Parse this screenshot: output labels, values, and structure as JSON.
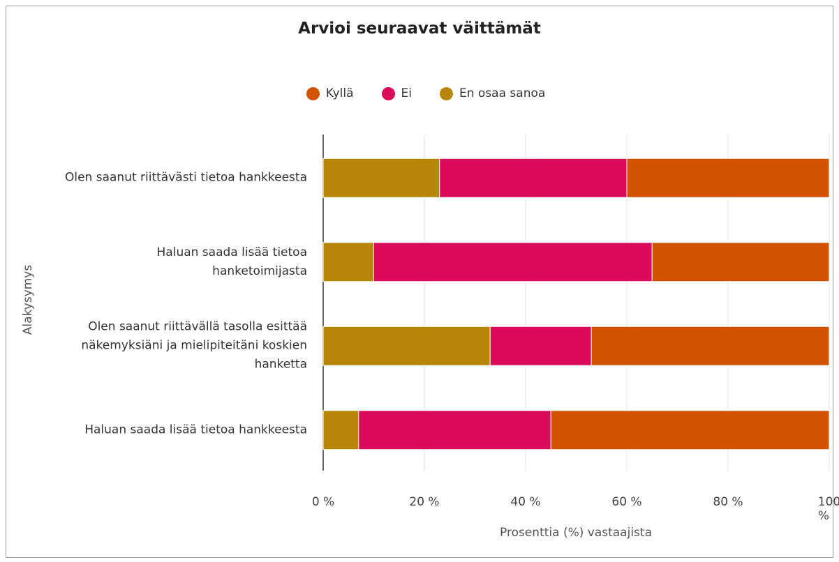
{
  "chart_data": {
    "type": "stacked_bar_horizontal",
    "title": "Arvioi seuraavat väittämät",
    "x_label": "Prosenttia (%) vastaajista",
    "y_label": "Alakysymys",
    "categories": [
      "Olen saanut riittävästi tietoa hankkeesta",
      "Haluan saada lisää tietoa hanketoimijasta",
      "Olen saanut riittävällä tasolla esittää näkemyksiäni ja mielipiteitäni koskien hanketta",
      "Haluan saada lisää tietoa hankkeesta"
    ],
    "series": [
      {
        "name": "Kyllä",
        "color": "#d35400",
        "values": [
          40,
          35,
          47,
          55
        ]
      },
      {
        "name": "Ei",
        "color": "#dc0a5a",
        "values": [
          37,
          55,
          20,
          38
        ]
      },
      {
        "name": "En osaa sanoa",
        "color": "#b8860b",
        "values": [
          23,
          10,
          33,
          7
        ]
      }
    ],
    "xlim": [
      0,
      100
    ],
    "xticks": [
      {
        "value": 0,
        "label": "0 %"
      },
      {
        "value": 20,
        "label": "20 %"
      },
      {
        "value": 40,
        "label": "40 %"
      },
      {
        "value": 60,
        "label": "60 %"
      },
      {
        "value": 80,
        "label": "80 %"
      },
      {
        "value": 100,
        "label": "100 %"
      }
    ],
    "grid": true,
    "legend": "top"
  }
}
